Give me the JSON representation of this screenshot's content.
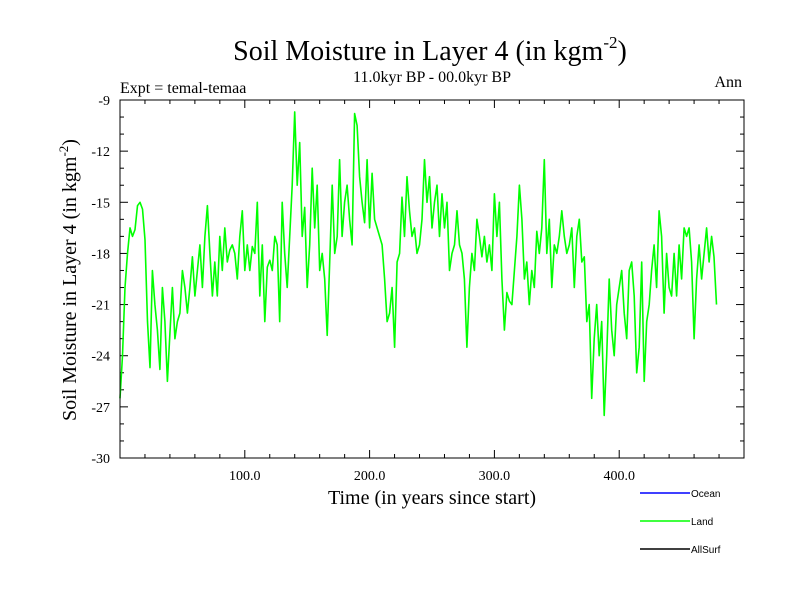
{
  "chart_data": {
    "type": "line",
    "title_main": "Soil Moisture in Layer 4 (in kgm",
    "title_exp": "-2",
    "title_close": ")",
    "subtitle": "11.0kyr BP - 00.0kyr BP",
    "expt_label": "Expt = temal-temaa",
    "season_label": "Ann",
    "xlabel": "Time (in years since start)",
    "ylabel_main": "Soil Moisture in Layer 4 (in kgm",
    "ylabel_exp": "-2",
    "ylabel_close": ")",
    "xlim": [
      0,
      500
    ],
    "ylim": [
      -30,
      -9
    ],
    "x_ticks": [
      100,
      200,
      300,
      400
    ],
    "x_tick_labels": [
      "100.0",
      "200.0",
      "300.0",
      "400.0"
    ],
    "y_ticks": [
      -30,
      -27,
      -24,
      -21,
      -18,
      -15,
      -12,
      -9
    ],
    "y_tick_labels": [
      "-30",
      "-27",
      "-24",
      "-21",
      "-18",
      "-15",
      "-12",
      "-9"
    ],
    "legend": [
      {
        "name": "Ocean",
        "color": "#0000ff"
      },
      {
        "name": "Land",
        "color": "#00ff00"
      },
      {
        "name": "AllSurf",
        "color": "#000000"
      }
    ],
    "series": [
      {
        "name": "Land",
        "color": "#00ff00",
        "x_start": 0,
        "x_step": 2,
        "values": [
          -26.5,
          -24,
          -20,
          -18,
          -16.5,
          -17,
          -16.6,
          -15.2,
          -15,
          -15.4,
          -17.2,
          -22,
          -24.7,
          -19,
          -21,
          -22.5,
          -24.8,
          -20,
          -22,
          -25.5,
          -22.7,
          -20,
          -23,
          -22,
          -21.5,
          -19,
          -20,
          -21.5,
          -20,
          -18.2,
          -20.5,
          -19,
          -17.5,
          -20,
          -17,
          -15.2,
          -18,
          -20.5,
          -18.5,
          -20.5,
          -17,
          -19,
          -16.5,
          -18.5,
          -17.8,
          -17.5,
          -18,
          -19.5,
          -17,
          -15.5,
          -19,
          -17.5,
          -19,
          -17.6,
          -18,
          -15,
          -20.5,
          -17.5,
          -22,
          -18.8,
          -18.4,
          -19,
          -17,
          -17.5,
          -22,
          -15,
          -18,
          -20,
          -17,
          -14,
          -9.7,
          -14,
          -11.5,
          -17,
          -15.3,
          -20,
          -17.5,
          -13,
          -16.5,
          -14,
          -19,
          -18,
          -19.5,
          -22.8,
          -18.5,
          -14,
          -18,
          -17,
          -12.5,
          -17,
          -15,
          -14,
          -16,
          -17.5,
          -9.8,
          -10.5,
          -13.5,
          -15,
          -16.2,
          -12.5,
          -16.5,
          -13.3,
          -16,
          -16.5,
          -17,
          -17.5,
          -19.5,
          -22,
          -21.5,
          -20,
          -23.5,
          -18.5,
          -18,
          -14.7,
          -17,
          -13.5,
          -15.5,
          -17,
          -16.5,
          -18,
          -17.5,
          -16,
          -12.5,
          -15,
          -13.5,
          -16.5,
          -15,
          -14,
          -17,
          -14.5,
          -16.5,
          -15,
          -19,
          -18,
          -17.5,
          -15.5,
          -17.5,
          -18,
          -19.5,
          -23.5,
          -20,
          -18,
          -19,
          -16,
          -17,
          -18.2,
          -17,
          -18.5,
          -17.5,
          -19,
          -14.5,
          -17,
          -15,
          -19.5,
          -22.5,
          -20.3,
          -20.8,
          -21,
          -19,
          -17,
          -14,
          -16,
          -19.5,
          -18.5,
          -21,
          -19,
          -20,
          -16.7,
          -18,
          -16.5,
          -12.5,
          -18,
          -16,
          -20,
          -17.5,
          -18,
          -17,
          -15.5,
          -17,
          -18,
          -17.5,
          -16.5,
          -20,
          -17,
          -16,
          -18.5,
          -18.2,
          -22,
          -21,
          -26.5,
          -23,
          -21,
          -24,
          -22,
          -27.5,
          -24,
          -19.5,
          -22.5,
          -24,
          -21,
          -20,
          -19,
          -21.5,
          -23,
          -19,
          -18.5,
          -20.5,
          -25,
          -23.5,
          -18.5,
          -25.5,
          -22,
          -21,
          -19,
          -17.5,
          -20,
          -15.5,
          -17,
          -21.5,
          -18,
          -20,
          -20.5,
          -18,
          -20.5,
          -17.5,
          -19.5,
          -16.5,
          -17,
          -16.5,
          -18.5,
          -23,
          -19.5,
          -17.5,
          -19.5,
          -18,
          -16.5,
          -18.5,
          -17,
          -18.2,
          -21
        ]
      }
    ]
  }
}
